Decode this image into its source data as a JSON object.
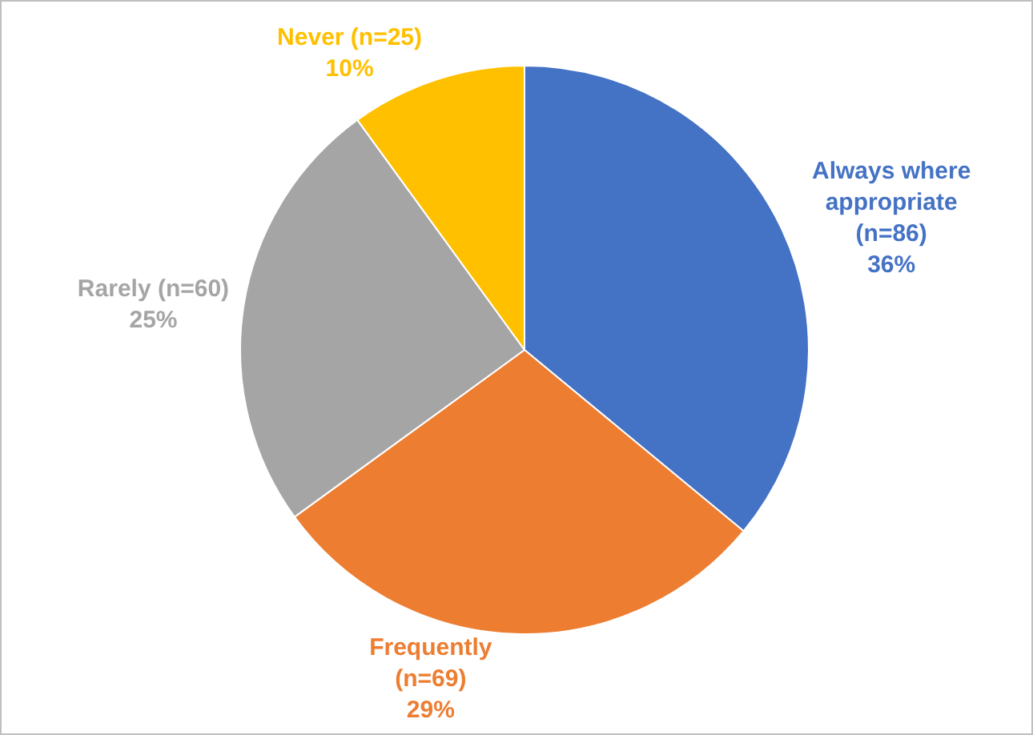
{
  "chart_data": {
    "type": "pie",
    "categories": [
      "Always where appropriate (n=86)",
      "Frequently (n=69)",
      "Rarely (n=60)",
      "Never (n=25)"
    ],
    "values": [
      36,
      29,
      25,
      10
    ],
    "value_labels": [
      "36%",
      "29%",
      "25%",
      "10%"
    ],
    "colors": [
      "#4472c4",
      "#ed7d31",
      "#a5a5a5",
      "#ffc000"
    ]
  }
}
